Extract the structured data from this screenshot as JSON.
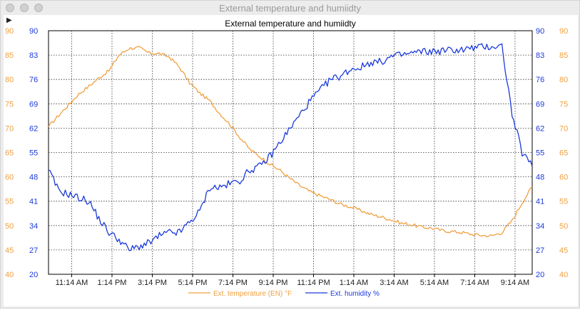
{
  "window": {
    "title": "External temperature and humiidty",
    "close_icon": "close-icon",
    "minimize_icon": "minimize-icon",
    "zoom_icon": "zoom-icon",
    "play_glyph": "▶"
  },
  "colors": {
    "temperature": "#f0a040",
    "humidity": "#1c3adc",
    "grid": "#333333",
    "axis": "#000000"
  },
  "chart_data": {
    "type": "line",
    "title": "External temperature and humiidty",
    "x_tick_labels": [
      "11:14 AM",
      "1:14 PM",
      "3:14 PM",
      "5:14 PM",
      "7:14 PM",
      "9:14 PM",
      "11:14 PM",
      "1:14 AM",
      "3:14 AM",
      "5:14 AM",
      "7:14 AM",
      "9:14 AM"
    ],
    "x_range_hours": [
      0,
      24
    ],
    "x_tick_hours": [
      1.15,
      3.15,
      5.15,
      7.15,
      9.15,
      11.15,
      13.15,
      15.15,
      17.15,
      19.15,
      21.15,
      23.15
    ],
    "y_left_temperature": {
      "ticks": [
        "90",
        "85",
        "80",
        "75",
        "70",
        "65",
        "60",
        "55",
        "50",
        "45",
        "40"
      ],
      "range": [
        40,
        90
      ]
    },
    "y_left_humidity": {
      "ticks": [
        "90",
        "83",
        "76",
        "69",
        "62",
        "55",
        "48",
        "41",
        "34",
        "27",
        "20"
      ],
      "range": [
        20,
        90
      ]
    },
    "y_right_humidity": {
      "ticks": [
        "90",
        "83",
        "76",
        "69",
        "62",
        "55",
        "48",
        "41",
        "34",
        "27",
        "20"
      ],
      "range": [
        20,
        90
      ]
    },
    "y_right_temperature": {
      "ticks": [
        "90",
        "85",
        "80",
        "75",
        "70",
        "65",
        "60",
        "55",
        "50",
        "45",
        "40"
      ],
      "range": [
        40,
        90
      ]
    },
    "grid": true,
    "legend_position": "bottom",
    "series": [
      {
        "name": "Ext. temperature (EN) °F",
        "axis": "temperature",
        "x": [
          0,
          0.5,
          1,
          1.5,
          2,
          2.5,
          3,
          3.5,
          4,
          4.5,
          5,
          5.5,
          6,
          6.5,
          7,
          7.5,
          8,
          8.5,
          9,
          9.5,
          10,
          10.5,
          11,
          11.5,
          12,
          12.5,
          13,
          13.5,
          14,
          14.5,
          15,
          15.5,
          16,
          16.5,
          17,
          17.5,
          18,
          18.5,
          19,
          19.5,
          20,
          20.5,
          21,
          21.5,
          22,
          22.5,
          23,
          23.5,
          24
        ],
        "values": [
          70.3,
          72.6,
          74.8,
          77,
          78.6,
          80.3,
          81.8,
          85,
          86.4,
          86.5,
          85.4,
          85.3,
          84.6,
          82.5,
          79.3,
          77.2,
          75.6,
          73,
          70.8,
          68.1,
          65.6,
          64.1,
          62.6,
          61.3,
          59.6,
          58.1,
          56.9,
          56.1,
          55.3,
          54.4,
          53.8,
          53.1,
          52.3,
          51.8,
          51.2,
          50.5,
          50.2,
          49.7,
          49.5,
          49,
          48.8,
          48.6,
          48.2,
          48,
          47.9,
          48.6,
          51,
          54.7,
          58
        ]
      },
      {
        "name": "Ext. humidity %",
        "axis": "humidity",
        "x": [
          0,
          0.5,
          1,
          1.5,
          2,
          2.5,
          3,
          3.5,
          4,
          4.5,
          5,
          5.5,
          6,
          6.5,
          7,
          7.5,
          8,
          8.5,
          9,
          9.5,
          10,
          10.5,
          11,
          11.5,
          12,
          12.5,
          13,
          13.5,
          14,
          14.5,
          15,
          15.5,
          16,
          16.5,
          17,
          17.5,
          18,
          18.5,
          19,
          19.5,
          20,
          20.5,
          21,
          21.5,
          22,
          22.5,
          23,
          23.5,
          24
        ],
        "values": [
          50,
          44,
          43,
          42,
          41,
          36,
          32,
          30,
          27,
          28,
          29,
          31,
          32,
          32,
          35,
          38,
          45,
          45,
          46,
          47,
          50,
          51,
          54,
          58,
          62,
          66,
          70,
          73,
          76,
          77,
          79,
          79.5,
          81,
          81,
          82.5,
          83,
          83.5,
          84,
          84,
          84.2,
          84.5,
          84.5,
          85,
          85.3,
          85.5,
          85.6,
          66,
          55,
          51
        ]
      }
    ]
  }
}
